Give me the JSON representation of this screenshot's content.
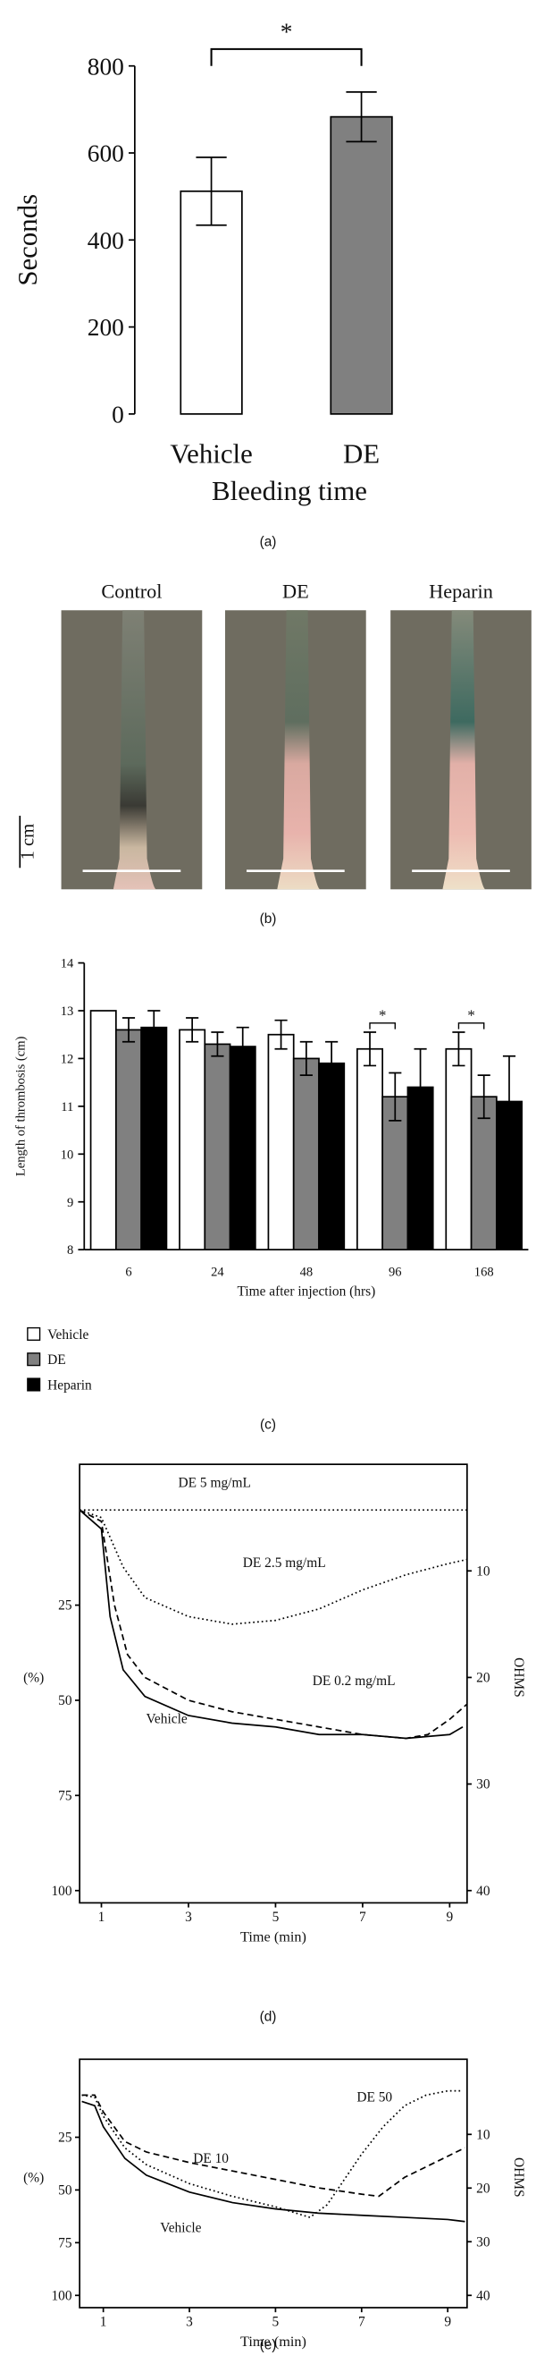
{
  "chart_data": [
    {
      "type": "bar",
      "panel_label": "(a)",
      "ylabel": "Seconds",
      "xlabel": "Bleeding time",
      "categories": [
        "Vehicle",
        "DE"
      ],
      "values": [
        512,
        683
      ],
      "errors": [
        78,
        57
      ],
      "colors": [
        "#ffffff",
        "#808080"
      ],
      "ylim": [
        0,
        800
      ],
      "yticks": [
        0,
        200,
        400,
        600,
        800
      ],
      "annotations": [
        {
          "text": "*"
        }
      ]
    },
    {
      "type": "image",
      "panel_label": "(b)",
      "labels": [
        "Control",
        "DE",
        "Heparin"
      ],
      "scale_label": "1 cm"
    },
    {
      "type": "bar",
      "panel_label": "(c)",
      "ylabel": "Length of thrombosis (cm)",
      "xlabel": "Time after injection (hrs)",
      "categories": [
        "6",
        "24",
        "48",
        "96",
        "168"
      ],
      "series": [
        {
          "name": "Vehicle",
          "color": "#ffffff",
          "values": [
            13,
            12.6,
            12.5,
            12.2,
            12.2
          ],
          "errors": [
            0,
            0.25,
            0.3,
            0.35,
            0.35
          ]
        },
        {
          "name": "DE",
          "color": "#808080",
          "values": [
            12.6,
            12.3,
            12.0,
            11.2,
            11.2
          ],
          "errors": [
            0.25,
            0.25,
            0.35,
            0.5,
            0.45
          ]
        },
        {
          "name": "Heparin",
          "color": "#000000",
          "values": [
            12.65,
            12.25,
            11.9,
            11.4,
            11.1
          ],
          "errors": [
            0.35,
            0.4,
            0.45,
            0.8,
            0.95
          ]
        }
      ],
      "ylim": [
        8,
        14
      ],
      "yticks": [
        8,
        9,
        10,
        11,
        12,
        13,
        14
      ],
      "annotations": [
        {
          "text": "*",
          "category": "96"
        },
        {
          "text": "*",
          "category": "168"
        }
      ]
    },
    {
      "type": "line",
      "panel_label": "(d)",
      "ylabel": "(%)",
      "y2label": "OHMS",
      "xlabel": "Time (min)",
      "xlim": [
        0.5,
        9.4
      ],
      "xticks": [
        1,
        3,
        5,
        7,
        9
      ],
      "ylim": [
        -12,
        100
      ],
      "yticks": [
        25,
        50,
        75,
        100
      ],
      "y2lim": [
        0,
        40
      ],
      "y2ticks": [
        10,
        20,
        30,
        40
      ],
      "inverted": true,
      "series": [
        {
          "name": "DE 5 mg/mL",
          "style": "dotted",
          "x": [
            0.5,
            9.4
          ],
          "values": [
            0,
            0
          ]
        },
        {
          "name": "DE 2.5 mg/mL",
          "style": "dotted",
          "x": [
            0.5,
            1,
            1.5,
            2,
            3,
            4,
            5,
            6,
            7,
            8,
            9,
            9.4
          ],
          "values": [
            0,
            2,
            15,
            23,
            28,
            30,
            29,
            26,
            21,
            17,
            14,
            13
          ]
        },
        {
          "name": "DE 0.2 mg/mL",
          "style": "dashed",
          "x": [
            0.5,
            1,
            1.3,
            1.6,
            2,
            3,
            4,
            5,
            6,
            7,
            8,
            8.5,
            9,
            9.4
          ],
          "values": [
            0,
            3,
            25,
            38,
            44,
            50,
            53,
            55,
            57,
            59,
            60,
            59,
            55,
            51
          ]
        },
        {
          "name": "Vehicle",
          "style": "solid",
          "x": [
            0.5,
            1,
            1.2,
            1.5,
            2,
            3,
            4,
            5,
            6,
            7,
            8,
            9,
            9.3
          ],
          "values": [
            0,
            5,
            28,
            42,
            49,
            54,
            56,
            57,
            59,
            59,
            60,
            59,
            57
          ]
        }
      ]
    },
    {
      "type": "line",
      "panel_label": "(e)",
      "ylabel": "(%)",
      "y2label": "OHMS",
      "xlabel": "Time (min)",
      "xlim": [
        0.45,
        9.45
      ],
      "xticks": [
        1,
        3,
        5,
        7,
        9
      ],
      "ylim": [
        -12,
        100
      ],
      "yticks": [
        25,
        50,
        75,
        100
      ],
      "y2lim": [
        -4,
        40
      ],
      "y2ticks": [
        10,
        20,
        30,
        40
      ],
      "inverted": true,
      "series": [
        {
          "name": "DE 50",
          "style": "dotted",
          "x": [
            0.5,
            0.8,
            1,
            1.5,
            2,
            3,
            4,
            5,
            5.8,
            6.2,
            7,
            7.5,
            8,
            8.5,
            9,
            9.3
          ],
          "values": [
            5,
            6,
            15,
            30,
            38,
            47,
            53,
            58,
            63,
            57,
            33,
            20,
            10,
            5,
            3,
            3
          ]
        },
        {
          "name": "DE 10",
          "style": "dashed",
          "x": [
            0.5,
            0.8,
            1,
            1.5,
            2,
            3,
            4,
            5,
            6,
            7,
            7.4,
            8,
            9,
            9.4
          ],
          "values": [
            5,
            5,
            13,
            27,
            32,
            37,
            41,
            45,
            49,
            52,
            53,
            44,
            34,
            30
          ]
        },
        {
          "name": "Vehicle",
          "style": "solid",
          "x": [
            0.5,
            0.8,
            1,
            1.5,
            2,
            3,
            4,
            5,
            6,
            7,
            8,
            9,
            9.4
          ],
          "values": [
            8,
            10,
            20,
            35,
            43,
            51,
            56,
            59,
            61,
            62,
            63,
            64,
            65
          ]
        }
      ]
    }
  ]
}
